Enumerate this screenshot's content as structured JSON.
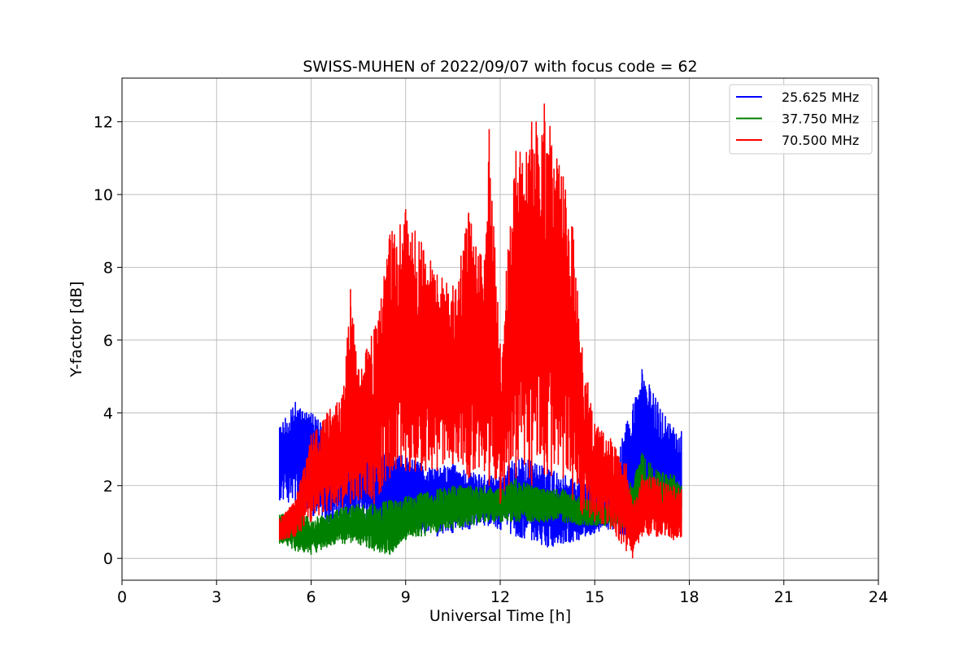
{
  "chart_data": {
    "type": "line",
    "title": "SWISS-MUHEN of 2022/09/07 with focus code = 62",
    "xlabel": "Universal Time [h]",
    "ylabel": "Y-factor [dB]",
    "xlim": [
      0,
      24
    ],
    "ylim": [
      -0.6,
      13.2
    ],
    "xticks": [
      0,
      3,
      6,
      9,
      12,
      15,
      18,
      21,
      24
    ],
    "yticks": [
      0,
      2,
      4,
      6,
      8,
      10,
      12
    ],
    "grid": true,
    "legend_position": "top-right",
    "series": [
      {
        "name": "25.625 MHz",
        "color": "#0000ff",
        "points": [
          {
            "x": 5.0,
            "low": 1.6,
            "high": 3.6
          },
          {
            "x": 5.5,
            "low": 1.5,
            "high": 4.3
          },
          {
            "x": 6.0,
            "low": 1.2,
            "high": 4.0
          },
          {
            "x": 6.5,
            "low": 1.0,
            "high": 3.6
          },
          {
            "x": 7.0,
            "low": 1.0,
            "high": 3.2
          },
          {
            "x": 7.5,
            "low": 1.2,
            "high": 3.3
          },
          {
            "x": 8.0,
            "low": 0.8,
            "high": 3.0
          },
          {
            "x": 8.5,
            "low": 1.0,
            "high": 2.9
          },
          {
            "x": 9.0,
            "low": 1.0,
            "high": 2.8
          },
          {
            "x": 9.5,
            "low": 0.7,
            "high": 2.6
          },
          {
            "x": 10.0,
            "low": 0.6,
            "high": 2.5
          },
          {
            "x": 10.5,
            "low": 0.7,
            "high": 2.6
          },
          {
            "x": 11.0,
            "low": 0.8,
            "high": 2.4
          },
          {
            "x": 11.5,
            "low": 0.9,
            "high": 2.3
          },
          {
            "x": 12.0,
            "low": 0.8,
            "high": 2.3
          },
          {
            "x": 12.5,
            "low": 0.6,
            "high": 2.8
          },
          {
            "x": 13.0,
            "low": 0.5,
            "high": 2.7
          },
          {
            "x": 13.5,
            "low": 0.3,
            "high": 2.5
          },
          {
            "x": 14.0,
            "low": 0.4,
            "high": 2.3
          },
          {
            "x": 14.5,
            "low": 0.5,
            "high": 2.2
          },
          {
            "x": 15.0,
            "low": 0.7,
            "high": 2.0
          },
          {
            "x": 15.5,
            "low": 0.8,
            "high": 2.1
          },
          {
            "x": 16.0,
            "low": 0.6,
            "high": 3.7
          },
          {
            "x": 16.5,
            "low": 1.2,
            "high": 5.2
          },
          {
            "x": 17.0,
            "low": 1.3,
            "high": 4.3
          },
          {
            "x": 17.5,
            "low": 1.5,
            "high": 3.6
          },
          {
            "x": 17.75,
            "low": 1.4,
            "high": 3.5
          }
        ]
      },
      {
        "name": "37.750 MHz",
        "color": "#008000",
        "points": [
          {
            "x": 5.0,
            "low": 0.4,
            "high": 1.2
          },
          {
            "x": 5.5,
            "low": 0.2,
            "high": 1.3
          },
          {
            "x": 6.0,
            "low": 0.1,
            "high": 1.1
          },
          {
            "x": 6.5,
            "low": 0.3,
            "high": 1.2
          },
          {
            "x": 7.0,
            "low": 0.4,
            "high": 1.4
          },
          {
            "x": 7.5,
            "low": 0.4,
            "high": 1.5
          },
          {
            "x": 8.0,
            "low": 0.2,
            "high": 1.5
          },
          {
            "x": 8.5,
            "low": 0.1,
            "high": 1.6
          },
          {
            "x": 9.0,
            "low": 0.5,
            "high": 1.7
          },
          {
            "x": 9.5,
            "low": 0.6,
            "high": 1.8
          },
          {
            "x": 10.0,
            "low": 0.7,
            "high": 1.9
          },
          {
            "x": 10.5,
            "low": 0.8,
            "high": 2.0
          },
          {
            "x": 11.0,
            "low": 0.9,
            "high": 2.0
          },
          {
            "x": 11.5,
            "low": 1.0,
            "high": 2.0
          },
          {
            "x": 12.0,
            "low": 1.0,
            "high": 1.9
          },
          {
            "x": 12.5,
            "low": 1.0,
            "high": 2.2
          },
          {
            "x": 13.0,
            "low": 1.0,
            "high": 2.0
          },
          {
            "x": 13.5,
            "low": 1.0,
            "high": 1.9
          },
          {
            "x": 14.0,
            "low": 1.0,
            "high": 1.9
          },
          {
            "x": 14.5,
            "low": 0.9,
            "high": 1.7
          },
          {
            "x": 15.0,
            "low": 0.9,
            "high": 1.6
          },
          {
            "x": 15.5,
            "low": 0.9,
            "high": 1.5
          },
          {
            "x": 16.0,
            "low": 0.8,
            "high": 1.8
          },
          {
            "x": 16.5,
            "low": 1.0,
            "high": 2.9
          },
          {
            "x": 17.0,
            "low": 1.1,
            "high": 2.4
          },
          {
            "x": 17.5,
            "low": 1.0,
            "high": 2.3
          },
          {
            "x": 17.75,
            "low": 1.0,
            "high": 2.0
          }
        ]
      },
      {
        "name": "70.500 MHz",
        "color": "#ff0000",
        "points": [
          {
            "x": 5.0,
            "low": 0.5,
            "high": 1.1
          },
          {
            "x": 5.5,
            "low": 0.6,
            "high": 1.6
          },
          {
            "x": 6.0,
            "low": 1.0,
            "high": 3.4
          },
          {
            "x": 6.5,
            "low": 1.3,
            "high": 4.0
          },
          {
            "x": 7.0,
            "low": 1.4,
            "high": 4.5
          },
          {
            "x": 7.25,
            "low": 1.5,
            "high": 7.4
          },
          {
            "x": 7.5,
            "low": 1.6,
            "high": 5.2
          },
          {
            "x": 8.0,
            "low": 1.5,
            "high": 6.3
          },
          {
            "x": 8.5,
            "low": 2.2,
            "high": 8.9
          },
          {
            "x": 9.0,
            "low": 2.4,
            "high": 9.6
          },
          {
            "x": 9.5,
            "low": 2.4,
            "high": 8.7
          },
          {
            "x": 10.0,
            "low": 2.4,
            "high": 7.8
          },
          {
            "x": 10.5,
            "low": 2.6,
            "high": 7.5
          },
          {
            "x": 11.0,
            "low": 2.2,
            "high": 9.5
          },
          {
            "x": 11.5,
            "low": 2.4,
            "high": 8.2
          },
          {
            "x": 11.65,
            "low": 2.0,
            "high": 11.8
          },
          {
            "x": 12.0,
            "low": 1.5,
            "high": 5.9
          },
          {
            "x": 12.5,
            "low": 2.2,
            "high": 11.2
          },
          {
            "x": 13.0,
            "low": 2.0,
            "high": 12.0
          },
          {
            "x": 13.4,
            "low": 2.3,
            "high": 12.5
          },
          {
            "x": 14.0,
            "low": 2.2,
            "high": 10.5
          },
          {
            "x": 14.3,
            "low": 1.6,
            "high": 9.1
          },
          {
            "x": 14.6,
            "low": 1.2,
            "high": 5.8
          },
          {
            "x": 15.0,
            "low": 1.0,
            "high": 3.7
          },
          {
            "x": 15.5,
            "low": 0.8,
            "high": 3.3
          },
          {
            "x": 16.0,
            "low": 0.2,
            "high": 2.6
          },
          {
            "x": 16.2,
            "low": 0.0,
            "high": 1.5
          },
          {
            "x": 16.5,
            "low": 0.6,
            "high": 2.3
          },
          {
            "x": 17.0,
            "low": 0.6,
            "high": 2.2
          },
          {
            "x": 17.5,
            "low": 0.5,
            "high": 2.0
          },
          {
            "x": 17.75,
            "low": 0.6,
            "high": 1.9
          }
        ]
      }
    ]
  }
}
